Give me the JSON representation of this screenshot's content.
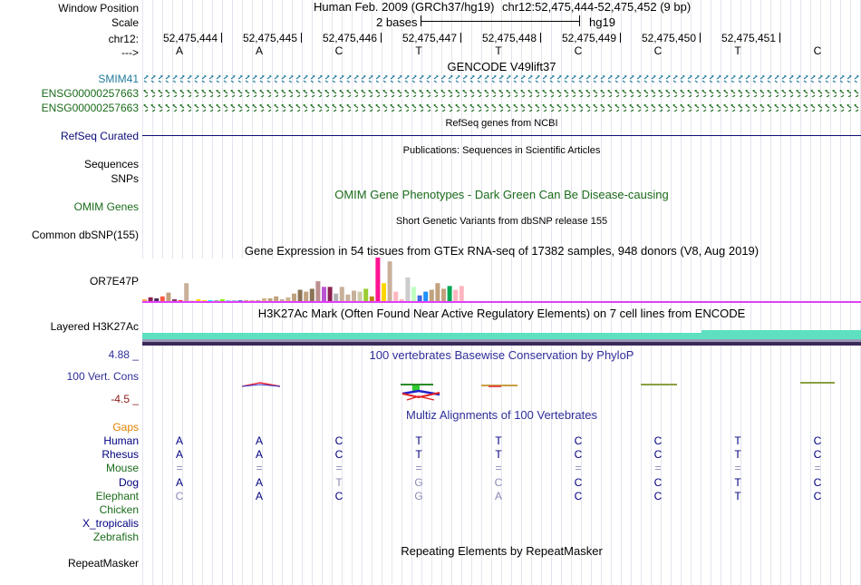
{
  "header": {
    "window_position_label": "Window Position",
    "scale_label": "Scale",
    "chrom_label": "chr12:",
    "strand_label": "--->",
    "assembly": "Human Feb. 2009 (GRCh37/hg19)",
    "position": "chr12:52,475,444-52,475,452 (9 bp)",
    "scale_text": "2 bases",
    "db": "hg19",
    "coordinates": [
      "52,475,444",
      "52,475,445",
      "52,475,446",
      "52,475,447",
      "52,475,448",
      "52,475,449",
      "52,475,450",
      "52,475,451"
    ],
    "bases": [
      "A",
      "A",
      "C",
      "T",
      "T",
      "C",
      "C",
      "T",
      "C"
    ]
  },
  "tracks": {
    "gencode": {
      "title": "GENCODE V49lift37",
      "genes": [
        "SMIM41",
        "ENSG00000257663",
        "ENSG00000257663"
      ]
    },
    "refseq": {
      "title": "RefSeq genes from NCBI",
      "label": "RefSeq Curated"
    },
    "pubs": {
      "title": "Publications: Sequences in Scientific Articles",
      "label1": "Sequences",
      "label2": "SNPs"
    },
    "omim": {
      "title": "OMIM Gene Phenotypes - Dark Green Can Be Disease-causing",
      "label": "OMIM Genes"
    },
    "dbsnp": {
      "title": "Short Genetic Variants from dbSNP release 155",
      "label": "Common dbSNP(155)"
    },
    "gtex": {
      "title": "Gene Expression in 54 tissues from GTEx RNA-seq of 17382 samples, 948 donors (V8, Aug 2019)",
      "label": "OR7E47P",
      "values": [
        2,
        4,
        3,
        5,
        9,
        2,
        1,
        19,
        1,
        2,
        1,
        1,
        1,
        2,
        1,
        1,
        1,
        1,
        1,
        1,
        3,
        3,
        5,
        2,
        4,
        8,
        12,
        10,
        13,
        21,
        15,
        15,
        8,
        15,
        7,
        11,
        10,
        13,
        5,
        46,
        19,
        42,
        10,
        2,
        25,
        15,
        6,
        10,
        12,
        19,
        13,
        16,
        12,
        16
      ],
      "colors": [
        "#ffaa55",
        "#8b2252",
        "#4f2a5b",
        "#ff5c45",
        "#c1a17e",
        "#8b3a62",
        "#ff3030",
        "#c8b09a",
        "#eee8aa",
        "#ffd700",
        "#ffd700",
        "#00ffff",
        "#8fbc8f",
        "#7fff00",
        "#87ceeb",
        "#9ac0cd",
        "#4682b4",
        "#c1a17e",
        "#d2b48c",
        "#c1a17e",
        "#d2b48c",
        "#c1a17e",
        "#c1a17e",
        "#c8b09a",
        "#d2b48c",
        "#c1a17e",
        "#8b7355",
        "#c1a17e",
        "#8b7355",
        "#bc8f8f",
        "#ba55d3",
        "#8b2252",
        "#b0b0b0",
        "#c8b09a",
        "#c8b09a",
        "#c8b09a",
        "#cdc9a5",
        "#9acd32",
        "#b8860b",
        "#ff1493",
        "#ffd700",
        "#c8b09a",
        "#ffb6c1",
        "#ffb6c1",
        "#cccccc",
        "#c1ffc1",
        "#4169e1",
        "#1e90ff",
        "#c1a17e",
        "#c1a17e",
        "#c1a17e",
        "#00a854",
        "#ffb6c1",
        "#ffb6c1"
      ],
      "axis_color": "#e040fb"
    },
    "h3k27ac": {
      "title": "H3K27Ac Mark (Often Found Near Active Regulatory Elements) on 7 cell lines from ENCODE",
      "label": "Layered H3K27Ac"
    },
    "phylop": {
      "title": "100 vertebrates Basewise Conservation by PhyloP",
      "label": "100 Vert. Cons",
      "max": "4.88 _",
      "min": "-4.5 _"
    },
    "multiz": {
      "title": "Multiz Alignments of 100 Vertebrates",
      "gaps_label": "Gaps",
      "species": [
        {
          "name": "Human",
          "color": "#000080",
          "bases": [
            "A",
            "A",
            "C",
            "T",
            "T",
            "C",
            "C",
            "T",
            "C"
          ]
        },
        {
          "name": "Rhesus",
          "color": "#000080",
          "bases": [
            "A",
            "A",
            "C",
            "T",
            "T",
            "C",
            "C",
            "T",
            "C"
          ]
        },
        {
          "name": "Mouse",
          "color": "#1a6b1a",
          "bases": [
            "=",
            "=",
            "=",
            "=",
            "=",
            "=",
            "=",
            "=",
            "="
          ]
        },
        {
          "name": "Dog",
          "color": "#000080",
          "bases": [
            "A",
            "A",
            "T",
            "G",
            "C",
            "C",
            "C",
            "T",
            "C"
          ]
        },
        {
          "name": "Elephant",
          "color": "#1a6b1a",
          "bases": [
            "C",
            "A",
            "C",
            "G",
            "A",
            "C",
            "C",
            "T",
            "C"
          ]
        },
        {
          "name": "Chicken",
          "color": "#1a6b1a",
          "bases": []
        },
        {
          "name": "X_tropicalis",
          "color": "#000080",
          "bases": []
        },
        {
          "name": "Zebrafish",
          "color": "#1a6b1a",
          "bases": []
        }
      ],
      "faded": [
        [
          false,
          false,
          false,
          false,
          false,
          false,
          false,
          false,
          false
        ],
        [
          false,
          false,
          false,
          false,
          false,
          false,
          false,
          false,
          false
        ],
        [
          true,
          true,
          true,
          true,
          true,
          true,
          true,
          true,
          true
        ],
        [
          false,
          false,
          true,
          true,
          true,
          false,
          false,
          false,
          false
        ],
        [
          true,
          false,
          false,
          true,
          true,
          false,
          false,
          false,
          false
        ]
      ]
    },
    "rmsk": {
      "title": "Repeating Elements by RepeatMasker",
      "label": "RepeatMasker"
    }
  }
}
